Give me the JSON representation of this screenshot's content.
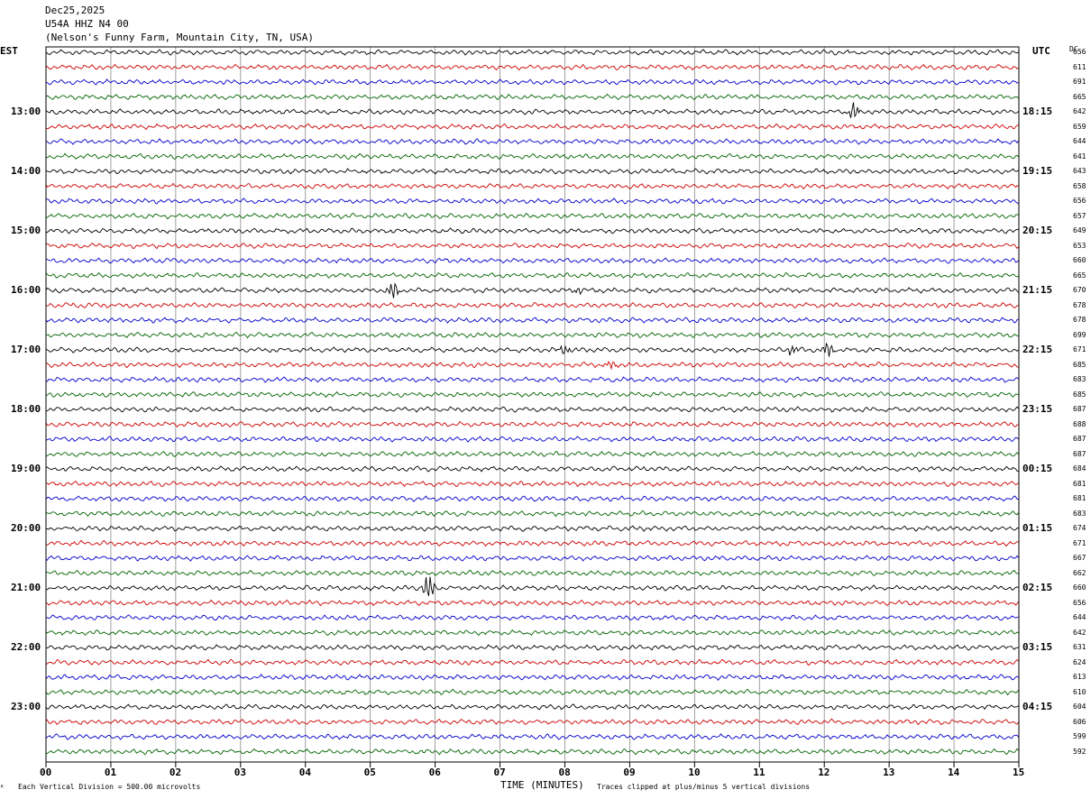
{
  "header": {
    "date": "Dec25,2025",
    "station": "U54A HHZ N4 00",
    "location": "(Nelson's Funny Farm, Mountain City, TN, USA)"
  },
  "left_axis_title": "EST",
  "right_axis_title": "UTC",
  "dc_title": "DC",
  "footer": {
    "scale": "Each Vertical Division =  500.00 microvolts",
    "xlabel": "TIME (MINUTES)",
    "clip_note": "Traces clipped at plus/minus 5 vertical divisions",
    "corner_mark": "ᴿ"
  },
  "chart_data": {
    "type": "line",
    "title": "U54A HHZ N4 00",
    "xlabel": "TIME (MINUTES)",
    "xlim": [
      0,
      15
    ],
    "x_ticks": [
      "00",
      "01",
      "02",
      "03",
      "04",
      "05",
      "06",
      "07",
      "08",
      "09",
      "10",
      "11",
      "12",
      "13",
      "14",
      "15"
    ],
    "trace_colors": [
      "#000000",
      "#cc0000",
      "#0000cc",
      "#006400"
    ],
    "left_hour_labels": [
      "13:00",
      "14:00",
      "15:00",
      "16:00",
      "17:00",
      "18:00",
      "19:00",
      "20:00",
      "21:00",
      "22:00",
      "23:00"
    ],
    "right_hour_labels": [
      "18:15",
      "19:15",
      "20:15",
      "21:15",
      "22:15",
      "23:15",
      "00:15",
      "01:15",
      "02:15",
      "03:15",
      "04:15"
    ],
    "dc_offsets": [
      656,
      611,
      691,
      665,
      642,
      659,
      644,
      641,
      643,
      658,
      656,
      657,
      649,
      653,
      660,
      665,
      670,
      678,
      678,
      699,
      671,
      685,
      683,
      685,
      687,
      688,
      687,
      687,
      684,
      681,
      681,
      683,
      674,
      671,
      667,
      662,
      660,
      656,
      644,
      642,
      631,
      624,
      613,
      610,
      604,
      606,
      599,
      592
    ],
    "events": [
      {
        "trace": 4,
        "minute": 12.45,
        "amp": 1.0
      },
      {
        "trace": 16,
        "minute": 5.35,
        "amp": 1.1
      },
      {
        "trace": 16,
        "minute": 8.2,
        "amp": 0.3
      },
      {
        "trace": 20,
        "minute": 8.0,
        "amp": 0.5
      },
      {
        "trace": 20,
        "minute": 11.5,
        "amp": 0.6
      },
      {
        "trace": 20,
        "minute": 12.05,
        "amp": 0.9
      },
      {
        "trace": 21,
        "minute": 8.7,
        "amp": 0.5
      },
      {
        "trace": 36,
        "minute": 5.9,
        "amp": 1.6
      }
    ]
  }
}
